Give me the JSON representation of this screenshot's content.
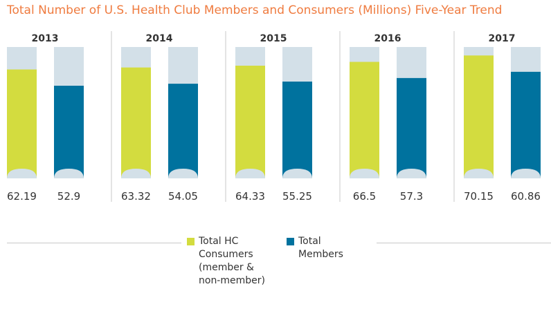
{
  "colors": {
    "consumers": "#d3dc3f",
    "members": "#00729e",
    "remainder": "#d3e0e8",
    "title": "#ef7b3f"
  },
  "legend": {
    "consumers": "Total HC\nConsumers\n(member &\nnon-member)",
    "members": "Total\nMembers"
  },
  "chart_data": {
    "type": "bar",
    "title": "Total Number of U.S. Health Club Members and Consumers (Millions) Five-Year Trend",
    "categories": [
      "2013",
      "2014",
      "2015",
      "2016",
      "2017"
    ],
    "series": [
      {
        "name": "Total HC Consumers (member & non-member)",
        "values": [
          62.19,
          63.32,
          64.33,
          66.5,
          70.15
        ]
      },
      {
        "name": "Total Members",
        "values": [
          52.9,
          54.05,
          55.25,
          57.3,
          60.86
        ]
      }
    ],
    "ylim": [
      0,
      75
    ],
    "grid": false,
    "legend_position": "bottom"
  }
}
